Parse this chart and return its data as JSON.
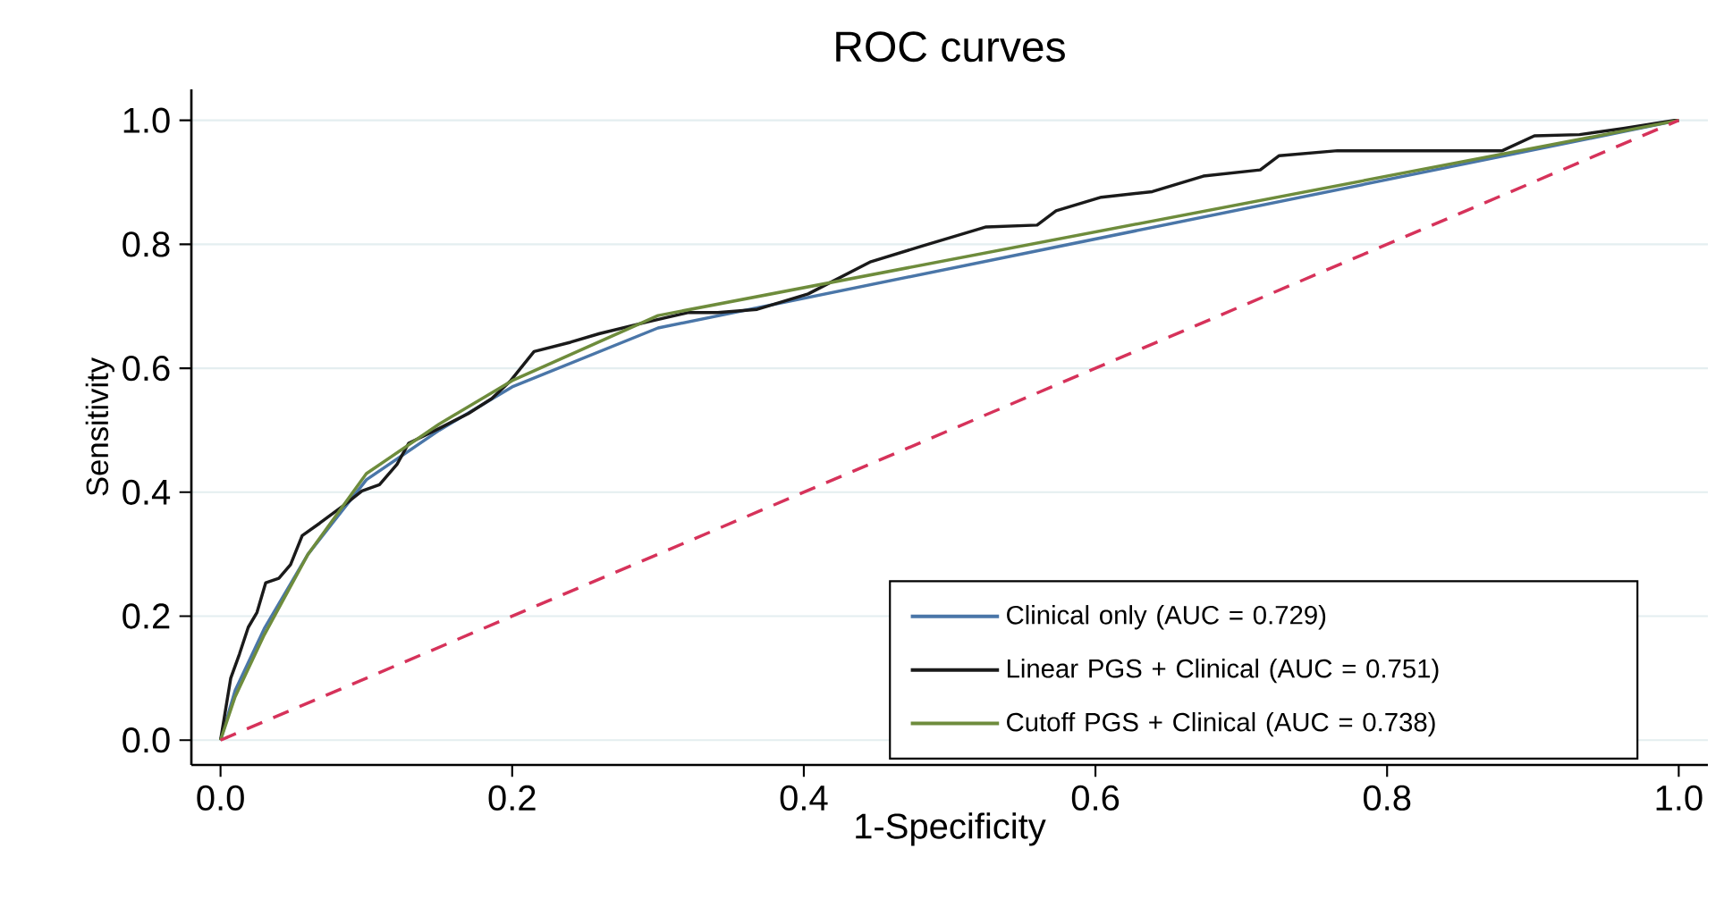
{
  "chart_data": {
    "type": "line",
    "title": "ROC curves",
    "xlabel": "1-Specificity",
    "ylabel": "Sensitivity",
    "xlim": [
      -0.02,
      1.02
    ],
    "ylim": [
      -0.04,
      1.05
    ],
    "xticks": [
      {
        "value": 0,
        "label": "0.0"
      },
      {
        "value": 0.2,
        "label": "0.2"
      },
      {
        "value": 0.4,
        "label": "0.4"
      },
      {
        "value": 0.6,
        "label": "0.6"
      },
      {
        "value": 0.8,
        "label": "0.8"
      },
      {
        "value": 1,
        "label": "1.0"
      }
    ],
    "yticks": [
      {
        "value": 0,
        "label": "0.0"
      },
      {
        "value": 0.2,
        "label": "0.2"
      },
      {
        "value": 0.4,
        "label": "0.4"
      },
      {
        "value": 0.6,
        "label": "0.6"
      },
      {
        "value": 0.8,
        "label": "0.8"
      },
      {
        "value": 1,
        "label": "1.0"
      }
    ],
    "grid": "y",
    "legend": "bottom right",
    "marker": "none",
    "series": [
      {
        "name": "Clinical only (AUC = 0.729)",
        "color": "#4a76a8",
        "line_style": "solid",
        "x": [
          0,
          0.01,
          0.03,
          0.06,
          0.1,
          0.15,
          0.2,
          0.3,
          1
        ],
        "values": [
          0,
          0.08,
          0.18,
          0.3,
          0.42,
          0.5,
          0.57,
          0.665,
          1
        ]
      },
      {
        "name": "Linear PGS + Clinical (AUC = 0.751)",
        "color": "#1a1a1a",
        "line_style": "solid",
        "x": [
          0,
          0.001,
          0.007,
          0.013,
          0.019,
          0.025,
          0.031,
          0.04,
          0.048,
          0.056,
          0.068,
          0.084,
          0.097,
          0.109,
          0.121,
          0.129,
          0.15,
          0.17,
          0.186,
          0.199,
          0.215,
          0.24,
          0.26,
          0.293,
          0.321,
          0.341,
          0.368,
          0.403,
          0.446,
          0.481,
          0.525,
          0.56,
          0.573,
          0.604,
          0.639,
          0.674,
          0.713,
          0.726,
          0.766,
          0.879,
          0.901,
          0.932,
          0.962,
          0.997,
          1
        ],
        "values": [
          0,
          0.014,
          0.1,
          0.139,
          0.182,
          0.206,
          0.254,
          0.261,
          0.283,
          0.33,
          0.35,
          0.378,
          0.402,
          0.412,
          0.445,
          0.479,
          0.503,
          0.527,
          0.551,
          0.58,
          0.627,
          0.642,
          0.656,
          0.675,
          0.69,
          0.69,
          0.695,
          0.72,
          0.772,
          0.797,
          0.828,
          0.831,
          0.854,
          0.876,
          0.885,
          0.91,
          0.92,
          0.943,
          0.951,
          0.951,
          0.975,
          0.977,
          0.987,
          1,
          1
        ]
      },
      {
        "name": "Cutoff PGS + Clinical (AUC = 0.738)",
        "color": "#6e8c3c",
        "line_style": "solid",
        "x": [
          0,
          0.01,
          0.03,
          0.06,
          0.1,
          0.15,
          0.2,
          0.3,
          1
        ],
        "values": [
          0,
          0.07,
          0.17,
          0.3,
          0.43,
          0.51,
          0.58,
          0.685,
          1
        ]
      },
      {
        "color": "#d6325a",
        "line_style": "dashed",
        "x": [
          0,
          1
        ],
        "values": [
          0,
          1
        ]
      }
    ]
  }
}
